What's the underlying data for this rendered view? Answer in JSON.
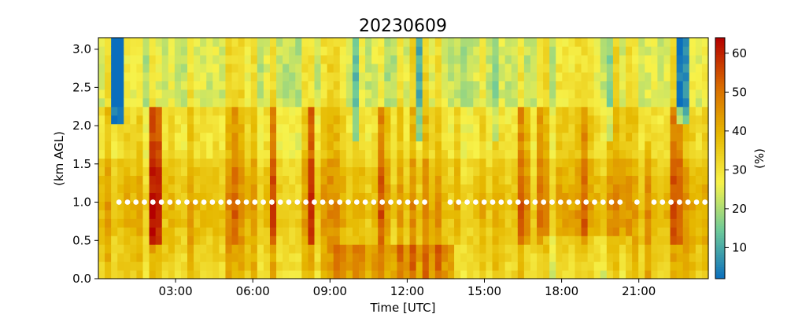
{
  "chart_data": {
    "type": "heatmap",
    "title": "20230609",
    "xlabel": "Time [UTC]",
    "ylabel": "(km AGL)",
    "colorbar_label": "(%)",
    "x_units": "hours UTC",
    "xlim": [
      0.0,
      23.7
    ],
    "ylim": [
      0.0,
      3.15
    ],
    "zlim": [
      2,
      64
    ],
    "x_ticks": [
      {
        "value": 3,
        "label": "03:00"
      },
      {
        "value": 6,
        "label": "06:00"
      },
      {
        "value": 9,
        "label": "09:00"
      },
      {
        "value": 12,
        "label": "12:00"
      },
      {
        "value": 15,
        "label": "15:00"
      },
      {
        "value": 18,
        "label": "18:00"
      },
      {
        "value": 21,
        "label": "21:00"
      }
    ],
    "y_ticks": [
      {
        "value": 0.0,
        "label": "0.0"
      },
      {
        "value": 0.5,
        "label": "0.5"
      },
      {
        "value": 1.0,
        "label": "1.0"
      },
      {
        "value": 1.5,
        "label": "1.5"
      },
      {
        "value": 2.0,
        "label": "2.0"
      },
      {
        "value": 2.5,
        "label": "2.5"
      },
      {
        "value": 3.0,
        "label": "3.0"
      }
    ],
    "colorbar_ticks": [
      {
        "value": 10,
        "label": "10"
      },
      {
        "value": 20,
        "label": "20"
      },
      {
        "value": 30,
        "label": "30"
      },
      {
        "value": 40,
        "label": "40"
      },
      {
        "value": 50,
        "label": "50"
      },
      {
        "value": 60,
        "label": "60"
      }
    ],
    "colormap": [
      "#0a6ebd",
      "#6cc99a",
      "#f7f24a",
      "#e6b800",
      "#d86a00",
      "#b40000"
    ],
    "marker_color": "#ffffff",
    "marker_level_km": 1.0,
    "marker_gaps_hours": [
      [
        13.0,
        13.4
      ],
      [
        20.3,
        20.85
      ],
      [
        20.95,
        21.5
      ]
    ]
  }
}
